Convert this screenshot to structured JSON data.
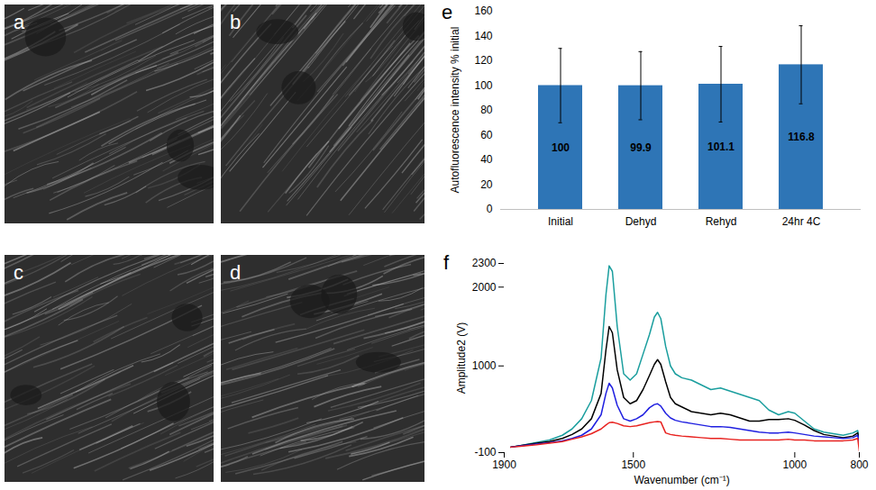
{
  "images": [
    {
      "label": "a"
    },
    {
      "label": "b"
    },
    {
      "label": "c"
    },
    {
      "label": "d"
    }
  ],
  "chart_data": [
    {
      "type": "bar",
      "panel": "e",
      "categories": [
        "Initial",
        "Dehyd",
        "Rehyd",
        "24hr 4C"
      ],
      "values": [
        100,
        99.9,
        101.1,
        116.8
      ],
      "errors": [
        30,
        27.5,
        30.5,
        31.5
      ],
      "color": "#2e75b6",
      "ylabel": "Autofluorescence intensity % initial",
      "ylim": [
        0,
        160
      ],
      "yticks": [
        0,
        20,
        40,
        60,
        80,
        100,
        120,
        140,
        160
      ],
      "grid": false,
      "data_labels": true
    },
    {
      "type": "line",
      "panel": "f",
      "xlabel": "Wavenumber (cm⁻¹)",
      "ylabel": "Amplitude2 (V)",
      "x": [
        1880,
        1850,
        1800,
        1760,
        1720,
        1690,
        1660,
        1630,
        1600,
        1585,
        1575,
        1565,
        1550,
        1530,
        1510,
        1490,
        1470,
        1450,
        1435,
        1425,
        1415,
        1400,
        1385,
        1370,
        1350,
        1320,
        1290,
        1260,
        1230,
        1200,
        1170,
        1140,
        1110,
        1080,
        1050,
        1020,
        1000,
        970,
        940,
        910,
        880,
        850,
        820,
        805,
        800
      ],
      "series": [
        {
          "color": "#1a9e9e",
          "values": [
            -30,
            -10,
            30,
            60,
            120,
            200,
            330,
            560,
            1100,
            1900,
            2270,
            2200,
            1500,
            900,
            820,
            900,
            1150,
            1400,
            1620,
            1680,
            1600,
            1250,
            1000,
            900,
            850,
            820,
            760,
            700,
            720,
            680,
            640,
            600,
            560,
            440,
            380,
            420,
            400,
            300,
            200,
            160,
            140,
            120,
            150,
            180,
            60
          ]
        },
        {
          "color": "#000000",
          "values": [
            -30,
            -10,
            20,
            40,
            80,
            130,
            200,
            330,
            650,
            1200,
            1500,
            1420,
            950,
            600,
            520,
            560,
            700,
            880,
            1020,
            1080,
            1020,
            800,
            600,
            520,
            480,
            420,
            400,
            380,
            400,
            380,
            340,
            300,
            300,
            320,
            320,
            330,
            310,
            250,
            180,
            130,
            110,
            90,
            110,
            150,
            40
          ]
        },
        {
          "color": "#1f1fe0",
          "values": [
            -30,
            -15,
            10,
            25,
            50,
            80,
            120,
            200,
            380,
            650,
            780,
            720,
            500,
            330,
            300,
            330,
            380,
            470,
            510,
            520,
            490,
            400,
            340,
            310,
            290,
            270,
            250,
            230,
            230,
            220,
            200,
            180,
            160,
            150,
            150,
            160,
            150,
            130,
            110,
            100,
            90,
            80,
            90,
            120,
            30
          ]
        },
        {
          "color": "#e8221f",
          "values": [
            -30,
            -20,
            0,
            20,
            40,
            70,
            100,
            140,
            200,
            250,
            280,
            285,
            270,
            240,
            230,
            240,
            260,
            280,
            290,
            295,
            290,
            150,
            130,
            120,
            110,
            100,
            90,
            80,
            80,
            70,
            60,
            60,
            60,
            60,
            60,
            70,
            60,
            60,
            50,
            50,
            50,
            50,
            60,
            80,
            -80
          ]
        }
      ],
      "xlim": [
        1900,
        800
      ],
      "xticks": [
        1900,
        1500,
        1000,
        800
      ],
      "ylim": [
        -100,
        2300
      ],
      "yticks": [
        -100,
        1000,
        2000,
        2300
      ],
      "grid": false
    }
  ]
}
